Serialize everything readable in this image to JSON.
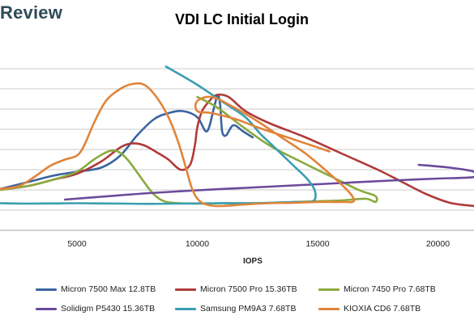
{
  "header": {
    "brand": "Review"
  },
  "chart_data": {
    "type": "line",
    "title": "VDI LC Initial Login",
    "xlabel": "IOPS",
    "ylabel": "",
    "xlim": [
      1800,
      21500
    ],
    "ylim": [
      0,
      4.6
    ],
    "x_ticks": [
      5000,
      10000,
      15000,
      20000
    ],
    "x_tick_labels": [
      "5000",
      "10000",
      "15000",
      "20000"
    ],
    "y_ticks": [
      0.5,
      1.0,
      1.5,
      2.0,
      2.5,
      3.0,
      3.5,
      4.0
    ],
    "grid": "horizontal",
    "legend_position": "bottom",
    "series": [
      {
        "name": "Micron 7500 Max 12.8TB",
        "color": "#3a64a0",
        "points": [
          [
            1800,
            1.02
          ],
          [
            3000,
            1.2
          ],
          [
            4000,
            1.35
          ],
          [
            5000,
            1.45
          ],
          [
            6000,
            1.55
          ],
          [
            6800,
            1.85
          ],
          [
            7500,
            2.35
          ],
          [
            8200,
            2.75
          ],
          [
            8800,
            2.9
          ],
          [
            9400,
            2.95
          ],
          [
            10000,
            2.8
          ],
          [
            10400,
            2.45
          ],
          [
            10700,
            3.05
          ],
          [
            10850,
            3.35
          ],
          [
            10950,
            3.1
          ],
          [
            11000,
            2.65
          ],
          [
            11050,
            2.4
          ],
          [
            11200,
            2.35
          ],
          [
            11500,
            2.6
          ],
          [
            11900,
            2.45
          ],
          [
            12300,
            2.3
          ]
        ]
      },
      {
        "name": "Micron 7500 Pro 15.36TB",
        "color": "#b03a3a",
        "points": [
          [
            1800,
            1.0
          ],
          [
            3000,
            1.1
          ],
          [
            4000,
            1.25
          ],
          [
            5000,
            1.4
          ],
          [
            6000,
            1.7
          ],
          [
            6800,
            2.05
          ],
          [
            7300,
            2.15
          ],
          [
            7800,
            2.1
          ],
          [
            8400,
            1.9
          ],
          [
            8800,
            1.75
          ],
          [
            9300,
            1.5
          ],
          [
            9700,
            1.62
          ],
          [
            9900,
            2.1
          ],
          [
            10000,
            2.55
          ],
          [
            10200,
            2.95
          ],
          [
            10500,
            3.2
          ],
          [
            10800,
            3.35
          ],
          [
            11300,
            3.3
          ],
          [
            12000,
            2.95
          ],
          [
            13000,
            2.65
          ],
          [
            14500,
            2.3
          ],
          [
            16000,
            1.9
          ],
          [
            17500,
            1.5
          ],
          [
            18500,
            1.2
          ],
          [
            19500,
            0.9
          ],
          [
            20500,
            0.68
          ],
          [
            21500,
            0.6
          ]
        ]
      },
      {
        "name": "Micron 7450 Pro 7.68TB",
        "color": "#8aaa3e",
        "points": [
          [
            1800,
            1.0
          ],
          [
            3000,
            1.1
          ],
          [
            4000,
            1.25
          ],
          [
            5000,
            1.45
          ],
          [
            5700,
            1.75
          ],
          [
            6300,
            1.95
          ],
          [
            6700,
            1.95
          ],
          [
            7100,
            1.75
          ],
          [
            7600,
            1.35
          ],
          [
            8100,
            0.95
          ],
          [
            8500,
            0.75
          ],
          [
            9000,
            0.68
          ],
          [
            10000,
            0.66
          ],
          [
            11000,
            0.67
          ],
          [
            12000,
            0.67
          ],
          [
            13000,
            0.68
          ],
          [
            14000,
            0.7
          ],
          [
            15000,
            0.72
          ],
          [
            16000,
            0.74
          ],
          [
            17000,
            0.78
          ],
          [
            17400,
            0.7
          ],
          [
            17400,
            0.85
          ],
          [
            16700,
            1.0
          ],
          [
            15500,
            1.35
          ],
          [
            14300,
            1.7
          ],
          [
            13000,
            2.1
          ],
          [
            11800,
            2.6
          ],
          [
            10800,
            3.05
          ],
          [
            10000,
            3.3
          ]
        ]
      },
      {
        "name": "Solidigm P5430 15.36TB",
        "color": "#6a4a9a",
        "points": [
          [
            4500,
            0.76
          ],
          [
            6000,
            0.83
          ],
          [
            8000,
            0.92
          ],
          [
            10000,
            0.99
          ],
          [
            12000,
            1.05
          ],
          [
            14000,
            1.11
          ],
          [
            16000,
            1.17
          ],
          [
            18000,
            1.23
          ],
          [
            20000,
            1.28
          ],
          [
            21500,
            1.32
          ],
          [
            21500,
            1.45
          ],
          [
            20500,
            1.55
          ],
          [
            19200,
            1.62
          ]
        ]
      },
      {
        "name": "Samsung PM9A3 7.68TB",
        "color": "#3a9eb0",
        "points": [
          [
            1800,
            0.67
          ],
          [
            3000,
            0.66
          ],
          [
            4000,
            0.665
          ],
          [
            5000,
            0.67
          ],
          [
            6000,
            0.665
          ],
          [
            7000,
            0.66
          ],
          [
            8000,
            0.655
          ],
          [
            9000,
            0.66
          ],
          [
            10000,
            0.665
          ],
          [
            11000,
            0.67
          ],
          [
            12000,
            0.67
          ],
          [
            13000,
            0.68
          ],
          [
            14000,
            0.7
          ],
          [
            14800,
            0.72
          ],
          [
            14900,
            0.95
          ],
          [
            14600,
            1.25
          ],
          [
            14000,
            1.6
          ],
          [
            13300,
            2.0
          ],
          [
            12600,
            2.4
          ],
          [
            12000,
            2.8
          ],
          [
            11000,
            3.2
          ],
          [
            10000,
            3.6
          ],
          [
            9000,
            3.95
          ],
          [
            8700,
            4.05
          ]
        ]
      },
      {
        "name": "KIOXIA CD6 7.68TB",
        "color": "#e0843a",
        "points": [
          [
            1800,
            1.02
          ],
          [
            2600,
            1.1
          ],
          [
            3300,
            1.35
          ],
          [
            3900,
            1.6
          ],
          [
            4500,
            1.75
          ],
          [
            5000,
            1.85
          ],
          [
            5300,
            2.1
          ],
          [
            5700,
            2.65
          ],
          [
            6200,
            3.2
          ],
          [
            6800,
            3.5
          ],
          [
            7300,
            3.62
          ],
          [
            7800,
            3.6
          ],
          [
            8300,
            3.3
          ],
          [
            8800,
            2.8
          ],
          [
            9200,
            2.2
          ],
          [
            9500,
            1.6
          ],
          [
            9800,
            1.0
          ],
          [
            10100,
            0.72
          ],
          [
            10500,
            0.62
          ],
          [
            11000,
            0.6
          ],
          [
            12000,
            0.64
          ],
          [
            13000,
            0.67
          ],
          [
            14000,
            0.68
          ],
          [
            15000,
            0.7
          ],
          [
            16000,
            0.7
          ],
          [
            16500,
            0.72
          ],
          [
            16300,
            0.95
          ],
          [
            15500,
            1.4
          ],
          [
            14500,
            1.9
          ],
          [
            13500,
            2.3
          ],
          [
            12500,
            2.7
          ],
          [
            11500,
            3.05
          ],
          [
            10600,
            3.3
          ],
          [
            10000,
            3.2
          ],
          [
            10000,
            2.95
          ],
          [
            10600,
            2.9
          ],
          [
            11600,
            2.75
          ],
          [
            12500,
            2.55
          ],
          [
            14000,
            2.25
          ],
          [
            15500,
            1.95
          ]
        ]
      }
    ]
  }
}
